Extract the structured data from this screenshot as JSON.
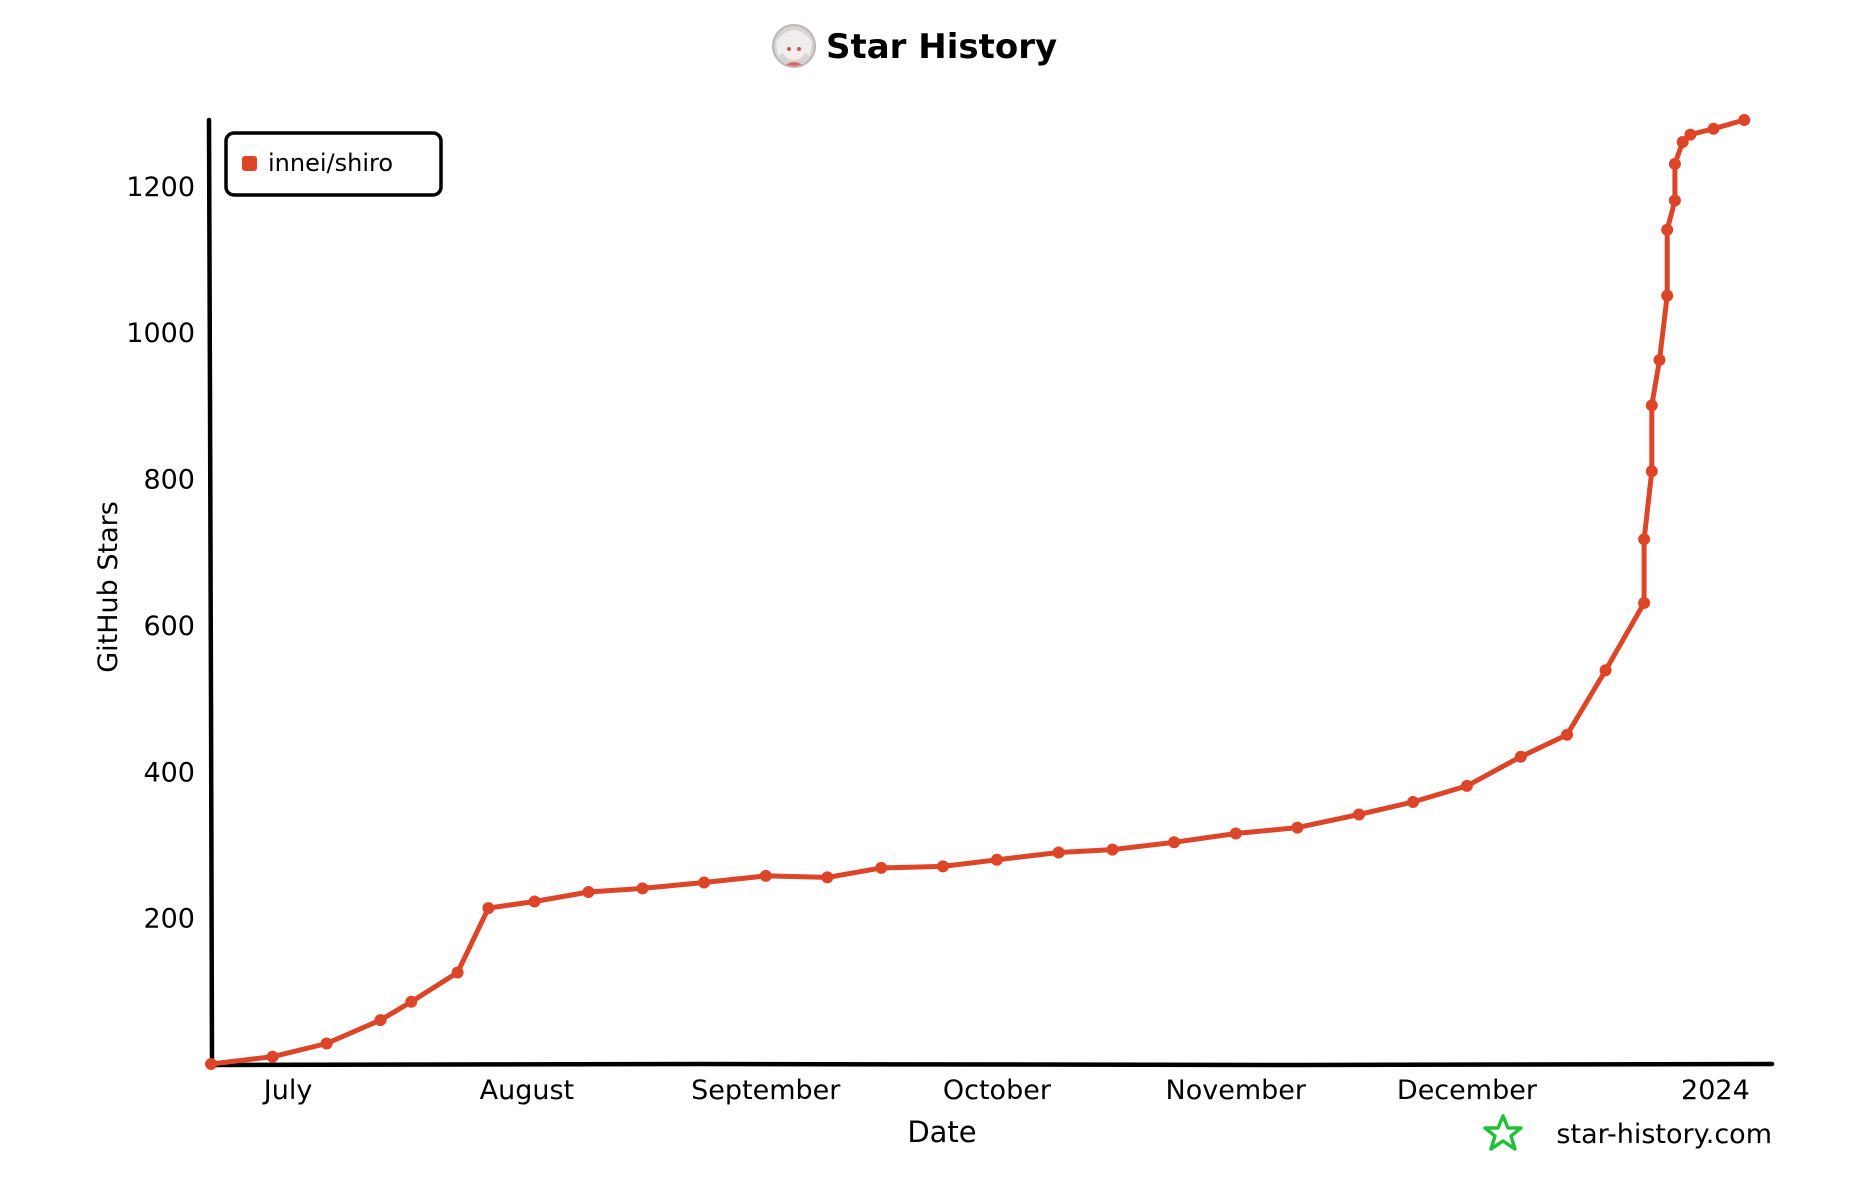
{
  "chart_data": {
    "type": "line",
    "title": "Star History",
    "xlabel": "Date",
    "ylabel": "GitHub Stars",
    "x_ticks": [
      "July",
      "August",
      "September",
      "October",
      "November",
      "December",
      "2024"
    ],
    "y_ticks": [
      200,
      400,
      600,
      800,
      1000,
      1200
    ],
    "xlim": [
      "2023-06-21",
      "2024-01-07"
    ],
    "ylim": [
      0,
      1290
    ],
    "legend": "top-left",
    "watermark": "star-history.com",
    "colors": {
      "series": "#dd4528",
      "watermark_icon": "#22c03a",
      "axis": "#000000"
    },
    "series": [
      {
        "name": "innei/shiro",
        "x": [
          "2023-06-21",
          "2023-06-29",
          "2023-07-06",
          "2023-07-13",
          "2023-07-17",
          "2023-07-23",
          "2023-07-27",
          "2023-08-02",
          "2023-08-09",
          "2023-08-16",
          "2023-08-24",
          "2023-09-01",
          "2023-09-09",
          "2023-09-16",
          "2023-09-24",
          "2023-10-01",
          "2023-10-09",
          "2023-10-16",
          "2023-10-24",
          "2023-11-01",
          "2023-11-09",
          "2023-11-17",
          "2023-11-24",
          "2023-12-01",
          "2023-12-08",
          "2023-12-14",
          "2023-12-19",
          "2023-12-24",
          "2023-12-24",
          "2023-12-25",
          "2023-12-25",
          "2023-12-26",
          "2023-12-27",
          "2023-12-27",
          "2023-12-28",
          "2023-12-28",
          "2023-12-29",
          "2023-12-30",
          "2024-01-02",
          "2024-01-06"
        ],
        "y": [
          0,
          10,
          28,
          60,
          85,
          125,
          213,
          222,
          235,
          240,
          248,
          257,
          255,
          268,
          270,
          279,
          289,
          293,
          303,
          315,
          323,
          341,
          358,
          380,
          420,
          450,
          538,
          630,
          717,
          810,
          900,
          962,
          1050,
          1140,
          1180,
          1230,
          1260,
          1270,
          1278,
          1290
        ]
      }
    ]
  }
}
